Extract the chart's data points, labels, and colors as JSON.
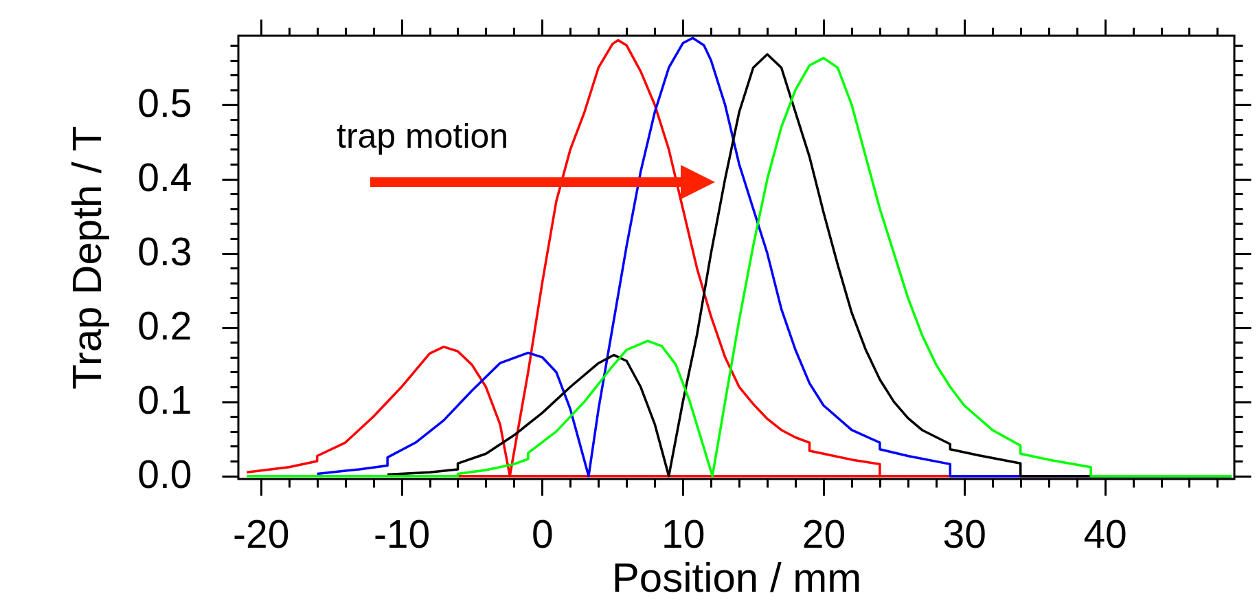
{
  "chart_data": {
    "type": "line",
    "xlabel": "Position / mm",
    "ylabel": "Trap Depth / T",
    "xlim": [
      -21.6,
      49.2
    ],
    "ylim": [
      -0.004,
      0.593
    ],
    "xticks": [
      -20,
      {
        "value": -18,
        "label": null
      },
      {
        "value": -16,
        "label": null
      },
      {
        "value": -14,
        "label": null
      },
      {
        "value": -12,
        "label": null
      },
      -10,
      {
        "value": -8,
        "label": null
      },
      {
        "value": -6,
        "label": null
      },
      {
        "value": -4,
        "label": null
      },
      {
        "value": -2,
        "label": null
      },
      0,
      {
        "value": 2,
        "label": null
      },
      {
        "value": 4,
        "label": null
      },
      {
        "value": 6,
        "label": null
      },
      {
        "value": 8,
        "label": null
      },
      10,
      {
        "value": 12,
        "label": null
      },
      {
        "value": 14,
        "label": null
      },
      {
        "value": 16,
        "label": null
      },
      {
        "value": 18,
        "label": null
      },
      20,
      {
        "value": 22,
        "label": null
      },
      {
        "value": 24,
        "label": null
      },
      {
        "value": 26,
        "label": null
      },
      {
        "value": 28,
        "label": null
      },
      30,
      {
        "value": 32,
        "label": null
      },
      {
        "value": 34,
        "label": null
      },
      {
        "value": 36,
        "label": null
      },
      {
        "value": 38,
        "label": null
      },
      40,
      {
        "value": 42,
        "label": null
      },
      {
        "value": 44,
        "label": null
      },
      {
        "value": 46,
        "label": null
      },
      {
        "value": 48,
        "label": null
      }
    ],
    "yticks": [
      {
        "value": 0,
        "label": "0.0"
      },
      {
        "value": 0.02,
        "label": null
      },
      {
        "value": 0.04,
        "label": null
      },
      {
        "value": 0.06,
        "label": null
      },
      {
        "value": 0.08,
        "label": null
      },
      0.1,
      {
        "value": 0.12,
        "label": null
      },
      {
        "value": 0.14,
        "label": null
      },
      {
        "value": 0.16,
        "label": null
      },
      {
        "value": 0.18,
        "label": null
      },
      0.2,
      {
        "value": 0.22,
        "label": null
      },
      {
        "value": 0.24,
        "label": null
      },
      {
        "value": 0.26,
        "label": null
      },
      {
        "value": 0.28,
        "label": null
      },
      0.3,
      {
        "value": 0.32,
        "label": null
      },
      {
        "value": 0.34,
        "label": null
      },
      {
        "value": 0.36,
        "label": null
      },
      {
        "value": 0.38,
        "label": null
      },
      0.4,
      {
        "value": 0.42,
        "label": null
      },
      {
        "value": 0.44,
        "label": null
      },
      {
        "value": 0.46,
        "label": null
      },
      {
        "value": 0.48,
        "label": null
      },
      0.5,
      {
        "value": 0.52,
        "label": null
      },
      {
        "value": 0.54,
        "label": null
      },
      {
        "value": 0.56,
        "label": null
      },
      {
        "value": 0.58,
        "label": null
      }
    ],
    "annotations": [
      "trap motion"
    ],
    "series": [
      {
        "color": "#ff0000",
        "x": [
          -6,
          24
        ],
        "values": [
          0,
          0
        ]
      },
      {
        "color": "#ff0000",
        "x": [
          -21,
          -18,
          -16,
          -16,
          -14,
          -12,
          -10,
          -8,
          -7,
          -6,
          -5,
          -4,
          -3,
          -2.3,
          -1,
          0,
          1,
          2,
          3,
          4,
          5,
          5.4,
          6,
          7,
          8,
          9,
          10,
          11,
          12,
          13,
          14,
          15,
          16,
          17,
          18,
          19,
          19,
          20,
          22,
          24,
          24,
          49
        ],
        "values": [
          0.005,
          0.012,
          0.02,
          0.027,
          0.045,
          0.08,
          0.12,
          0.165,
          0.174,
          0.168,
          0.15,
          0.12,
          0.07,
          0,
          0.14,
          0.26,
          0.37,
          0.44,
          0.49,
          0.55,
          0.582,
          0.587,
          0.58,
          0.545,
          0.5,
          0.44,
          0.36,
          0.28,
          0.215,
          0.16,
          0.12,
          0.097,
          0.077,
          0.062,
          0.052,
          0.045,
          0.034,
          0.03,
          0.022,
          0.016,
          0,
          0
        ]
      },
      {
        "color": "#0000ff",
        "x": [
          -16,
          -13,
          -11,
          -11,
          -9,
          -7,
          -5,
          -3,
          -1,
          0,
          1,
          2,
          3.3,
          4,
          5,
          6,
          7,
          8,
          9,
          10,
          10.7,
          11.5,
          12,
          13,
          14,
          15,
          16,
          17,
          18,
          19,
          20,
          22,
          24,
          24,
          26,
          29,
          29,
          49
        ],
        "values": [
          0.003,
          0.009,
          0.014,
          0.025,
          0.045,
          0.075,
          0.115,
          0.152,
          0.166,
          0.16,
          0.14,
          0.09,
          0,
          0.09,
          0.2,
          0.31,
          0.41,
          0.49,
          0.55,
          0.583,
          0.59,
          0.58,
          0.56,
          0.5,
          0.42,
          0.36,
          0.3,
          0.225,
          0.17,
          0.125,
          0.095,
          0.062,
          0.045,
          0.036,
          0.027,
          0.016,
          0,
          0
        ]
      },
      {
        "color": "#000000",
        "x": [
          -11,
          -8,
          -6,
          -6,
          -4,
          -2,
          0,
          2,
          4,
          5.1,
          6,
          7,
          8,
          9,
          10,
          11,
          12,
          13,
          14,
          15,
          16,
          17,
          18,
          19,
          20,
          21,
          22,
          23,
          24,
          25,
          26,
          27,
          29,
          29,
          31,
          34,
          34,
          49
        ],
        "values": [
          0.002,
          0.005,
          0.009,
          0.017,
          0.03,
          0.055,
          0.085,
          0.12,
          0.152,
          0.163,
          0.155,
          0.12,
          0.07,
          0,
          0.1,
          0.19,
          0.3,
          0.4,
          0.49,
          0.55,
          0.568,
          0.55,
          0.49,
          0.43,
          0.355,
          0.285,
          0.22,
          0.17,
          0.13,
          0.1,
          0.078,
          0.062,
          0.043,
          0.036,
          0.028,
          0.017,
          0,
          0
        ]
      },
      {
        "color": "#00ff00",
        "x": [
          -21,
          -6,
          -6,
          -4,
          -2,
          -1,
          -1,
          1,
          3,
          5,
          6,
          7.5,
          8.5,
          9.5,
          10.5,
          12.1,
          13,
          14,
          15,
          16,
          17,
          18,
          19,
          20,
          21,
          22,
          23,
          24,
          25,
          26,
          27,
          28,
          29,
          30,
          32,
          34,
          34,
          36,
          39,
          39,
          49
        ],
        "values": [
          0,
          0,
          0.003,
          0.008,
          0.016,
          0.023,
          0.031,
          0.06,
          0.1,
          0.148,
          0.17,
          0.182,
          0.175,
          0.15,
          0.1,
          0,
          0.1,
          0.21,
          0.31,
          0.4,
          0.47,
          0.52,
          0.553,
          0.563,
          0.55,
          0.5,
          0.43,
          0.36,
          0.3,
          0.24,
          0.19,
          0.15,
          0.12,
          0.095,
          0.062,
          0.041,
          0.03,
          0.022,
          0.012,
          0,
          0
        ]
      }
    ]
  }
}
